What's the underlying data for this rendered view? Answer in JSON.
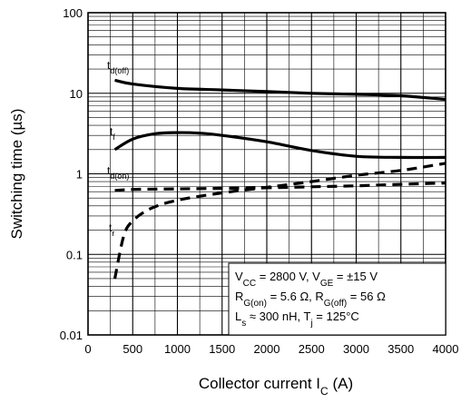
{
  "chart_data": {
    "type": "line",
    "xlabel": {
      "main": "Collector current  I",
      "sub": "C",
      "rest": "  (A)"
    },
    "ylabel": "Switching time  (µs)",
    "x_scale": "linear",
    "y_scale": "log",
    "xlim": [
      0,
      4000
    ],
    "ylim": [
      0.01,
      100
    ],
    "grid": true,
    "x_ticks": [
      "0",
      "500",
      "1000",
      "1500",
      "2000",
      "2500",
      "3000",
      "3500",
      "4000"
    ],
    "y_ticks": [
      "0.01",
      "0.1",
      "1",
      "10",
      "100"
    ],
    "series": [
      {
        "id": "td_off",
        "label_main": "t",
        "label_sub": "d(off)",
        "style": "solid",
        "x": [
          300,
          500,
          1000,
          1500,
          2000,
          2500,
          3000,
          3500,
          4000
        ],
        "y": [
          14.5,
          13.0,
          11.5,
          11.0,
          10.5,
          10.0,
          9.7,
          9.3,
          8.4
        ]
      },
      {
        "id": "tf",
        "label_main": "t",
        "label_sub": "f",
        "style": "solid",
        "x": [
          300,
          500,
          750,
          1000,
          1250,
          1500,
          2000,
          2500,
          3000,
          3500,
          4000
        ],
        "y": [
          2.0,
          2.7,
          3.15,
          3.25,
          3.2,
          3.0,
          2.5,
          1.95,
          1.65,
          1.6,
          1.6
        ]
      },
      {
        "id": "td_on",
        "label_main": "t",
        "label_sub": "d(on)",
        "style": "dashed",
        "x": [
          300,
          500,
          1000,
          1500,
          2000,
          2500,
          3000,
          3500,
          4000
        ],
        "y": [
          0.62,
          0.64,
          0.65,
          0.66,
          0.67,
          0.69,
          0.71,
          0.74,
          0.77
        ]
      },
      {
        "id": "tr",
        "label_main": "t",
        "label_sub": "r",
        "style": "dashed",
        "x": [
          300,
          400,
          500,
          700,
          1000,
          1500,
          2000,
          2500,
          3000,
          3500,
          4000
        ],
        "y": [
          0.05,
          0.17,
          0.26,
          0.37,
          0.47,
          0.58,
          0.68,
          0.8,
          0.96,
          1.1,
          1.35
        ]
      }
    ],
    "annotation": {
      "line1": [
        {
          "t": "V"
        },
        {
          "t": "CC",
          "sub": true
        },
        {
          "t": " = 2800 V, V"
        },
        {
          "t": "GE",
          "sub": true
        },
        {
          "t": " = ±15 V"
        }
      ],
      "line2": [
        {
          "t": "R"
        },
        {
          "t": "G(on)",
          "sub": true
        },
        {
          "t": " = 5.6 Ω, R"
        },
        {
          "t": "G(off)",
          "sub": true
        },
        {
          "t": " = 56 Ω"
        }
      ],
      "line3": [
        {
          "t": "L"
        },
        {
          "t": "s",
          "sub": true
        },
        {
          "t": " ≈ 300 nH, T"
        },
        {
          "t": "j",
          "sub": true
        },
        {
          "t": " = 125°C"
        }
      ]
    }
  }
}
